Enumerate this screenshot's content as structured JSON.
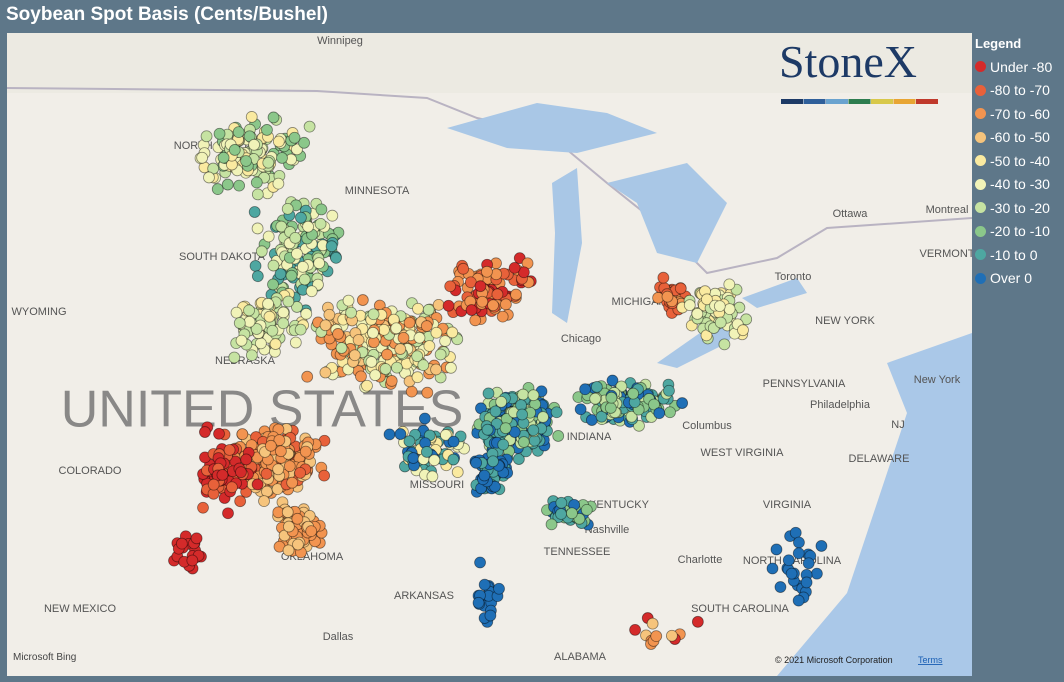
{
  "header": {
    "title": "Soybean Spot Basis (Cents/Bushel)"
  },
  "legend": {
    "title": "Legend",
    "items": [
      {
        "label": "Under -80",
        "color": "#d42a2a"
      },
      {
        "label": "-80 to -70",
        "color": "#e8613a"
      },
      {
        "label": "-70 to -60",
        "color": "#f29450"
      },
      {
        "label": "-60 to -50",
        "color": "#f6c47c"
      },
      {
        "label": "-50 to -40",
        "color": "#faeaa0"
      },
      {
        "label": "-40 to -30",
        "color": "#f1f3b8"
      },
      {
        "label": "-30 to -20",
        "color": "#c6e3a2"
      },
      {
        "label": "-20 to -10",
        "color": "#8bc78a"
      },
      {
        "label": "-10 to 0",
        "color": "#4ea7a1"
      },
      {
        "label": "Over 0",
        "color": "#1f6fb6"
      }
    ]
  },
  "logo": "StoneX",
  "map": {
    "labels": [
      "Winnipeg",
      "NORTH DAKOTA",
      "MINNESOTA",
      "SOUTH DAKOTA",
      "WYOMING",
      "NEBRASKA",
      "UNITED STATES",
      "COLORADO",
      "MISSOURI",
      "OKLAHOMA",
      "NEW MEXICO",
      "ARKANSAS",
      "Dallas",
      "ALABAMA",
      "TENNESSEE",
      "Nashville",
      "KENTUCKY",
      "Charlotte",
      "NORTH CAROLINA",
      "SOUTH CAROLINA",
      "VIRGINIA",
      "WEST VIRGINIA",
      "Columbus",
      "PENNSYLVANIA",
      "Philadelphia",
      "NEW YORK",
      "New York",
      "Toronto",
      "Ottawa",
      "Montreal",
      "VERMONT",
      "DELAWARE",
      "NJ",
      "MICHIGAN",
      "Chicago",
      "INDIANA"
    ],
    "attribution": "© 2021 Microsoft Corporation",
    "terms": "Terms",
    "provider": "Microsoft Bing"
  }
}
